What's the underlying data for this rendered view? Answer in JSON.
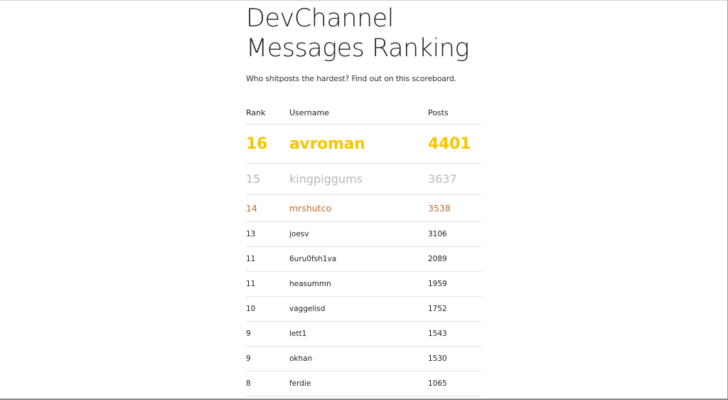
{
  "header": {
    "title_line1": "DevChannel",
    "title_line2": "Messages Ranking",
    "subtitle": "Who shitposts the hardest? Find out on this scoreboard."
  },
  "table": {
    "columns": [
      "Rank",
      "Username",
      "Posts"
    ],
    "rows": [
      {
        "rank": "16",
        "username": "avroman",
        "posts": "4401"
      },
      {
        "rank": "15",
        "username": "kingpiggums",
        "posts": "3637"
      },
      {
        "rank": "14",
        "username": "mrshutco",
        "posts": "3538"
      },
      {
        "rank": "13",
        "username": "joesv",
        "posts": "3106"
      },
      {
        "rank": "11",
        "username": "6uru0fsh1va",
        "posts": "2089"
      },
      {
        "rank": "11",
        "username": "heasummn",
        "posts": "1959"
      },
      {
        "rank": "10",
        "username": "vaggelisd",
        "posts": "1752"
      },
      {
        "rank": "9",
        "username": "lett1",
        "posts": "1543"
      },
      {
        "rank": "9",
        "username": "okhan",
        "posts": "1530"
      },
      {
        "rank": "8",
        "username": "ferdie",
        "posts": "1065"
      }
    ]
  },
  "colors": {
    "gold": "#f7c600",
    "silver": "#b8b8b8",
    "bronze": "#c46b2a"
  }
}
